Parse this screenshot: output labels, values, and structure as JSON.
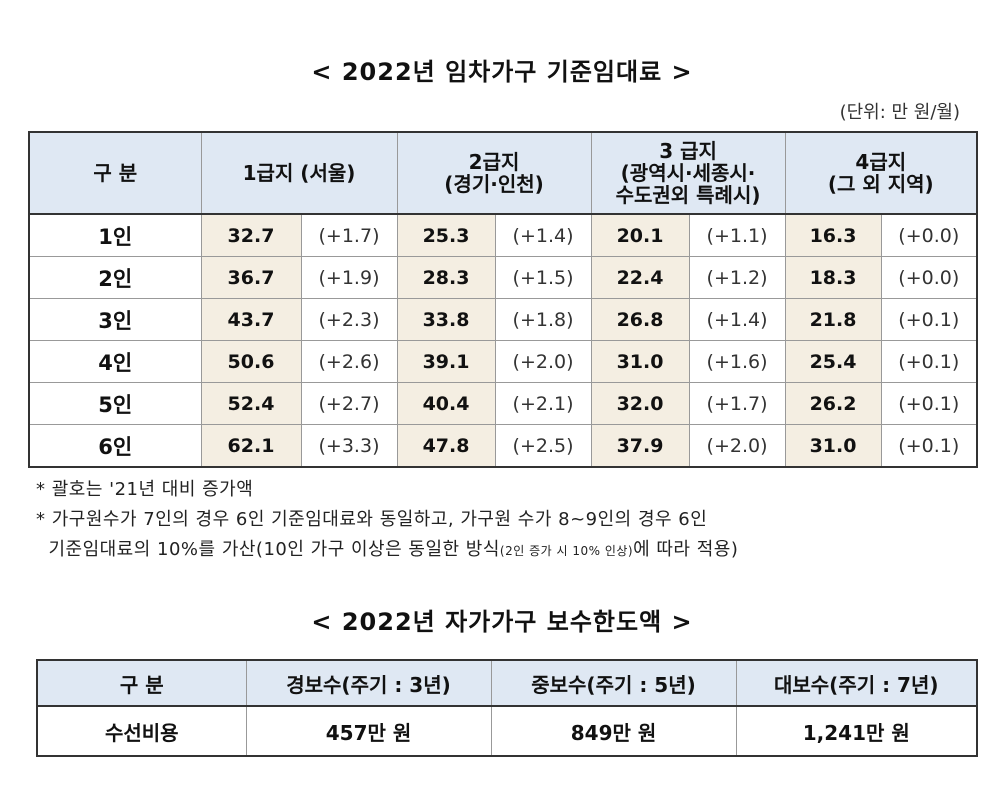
{
  "rent_title": "< 2022년 임차가구 기준임대료 >",
  "unit": "(단위: 만 원/월)",
  "rent_table": {
    "header": [
      [
        "구 분"
      ],
      [
        "1급지 (서울)"
      ],
      [
        "2급지",
        "(경기·인천)"
      ],
      [
        "3 급지",
        "(광역시·세종시·",
        "수도권외 특례시)"
      ],
      [
        "4급지",
        "(그 외 지역)"
      ]
    ],
    "rows": [
      [
        "1인",
        "32.7",
        "(+1.7)",
        "25.3",
        "(+1.4)",
        "20.1",
        "(+1.1)",
        "16.3",
        "(+0.0)"
      ],
      [
        "2인",
        "36.7",
        "(+1.9)",
        "28.3",
        "(+1.5)",
        "22.4",
        "(+1.2)",
        "18.3",
        "(+0.0)"
      ],
      [
        "3인",
        "43.7",
        "(+2.3)",
        "33.8",
        "(+1.8)",
        "26.8",
        "(+1.4)",
        "21.8",
        "(+0.1)"
      ],
      [
        "4인",
        "50.6",
        "(+2.6)",
        "39.1",
        "(+2.0)",
        "31.0",
        "(+1.6)",
        "25.4",
        "(+0.1)"
      ],
      [
        "5인",
        "52.4",
        "(+2.7)",
        "40.4",
        "(+2.1)",
        "32.0",
        "(+1.7)",
        "26.2",
        "(+0.1)"
      ],
      [
        "6인",
        "62.1",
        "(+3.3)",
        "47.8",
        "(+2.5)",
        "37.9",
        "(+2.0)",
        "31.0",
        "(+0.1)"
      ]
    ]
  },
  "notes": [
    [
      "* 괄호는 '21년 대비 증가액"
    ],
    [
      "* 가구원수가 7인의 경우 6인 기준임대료와 동일하고, 가구원 수가 8~9인의 경우 6인"
    ],
    [
      "  기준임대료의 10%를 가산(10인 가구 이상은 동일한 방식",
      "(2인 증가 시 10% 인상)",
      "에 따라 적용)"
    ]
  ],
  "repair_title": "< 2022년 자가가구 보수한도액 >",
  "repair_table": {
    "header": [
      "구 분",
      "경보수(주기 : 3년)",
      "중보수(주기 : 5년)",
      "대보수(주기 : 7년)"
    ],
    "rows": [
      [
        "수선비용",
        "457만 원",
        "849만 원",
        "1,241만 원"
      ]
    ]
  }
}
